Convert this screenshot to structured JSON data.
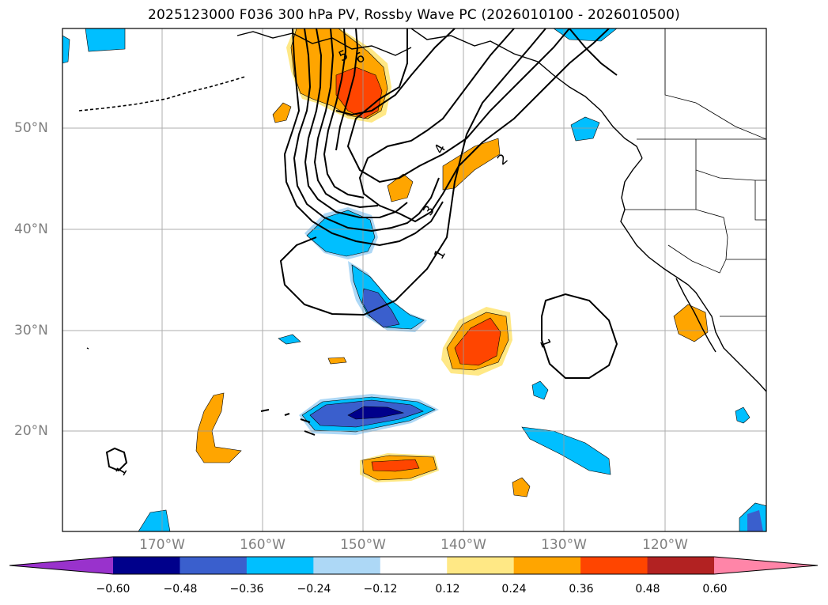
{
  "title": "2025123000 F036 300 hPa PV, Rossby Wave PC (2026010100 - 2026010500)",
  "lat_labels": [
    "50°N",
    "40°N",
    "30°N",
    "20°N"
  ],
  "lon_labels": [
    "170°W",
    "160°W",
    "150°W",
    "140°W",
    "130°W",
    "120°W"
  ],
  "contour_labels": [
    "1",
    "2",
    "3",
    "4",
    "5",
    "6",
    "1",
    "1"
  ],
  "colorbar": {
    "ticks": [
      "−0.60",
      "−0.48",
      "−0.36",
      "−0.24",
      "−0.12",
      "0.12",
      "0.24",
      "0.36",
      "0.48",
      "0.60"
    ],
    "colors": [
      "#9932cc",
      "#00008b",
      "#3a5fcd",
      "#00bfff",
      "#add8f6",
      "#ffffff",
      "#ffe885",
      "#ffa500",
      "#ff4500",
      "#b22222",
      "#ff85a8"
    ]
  }
}
